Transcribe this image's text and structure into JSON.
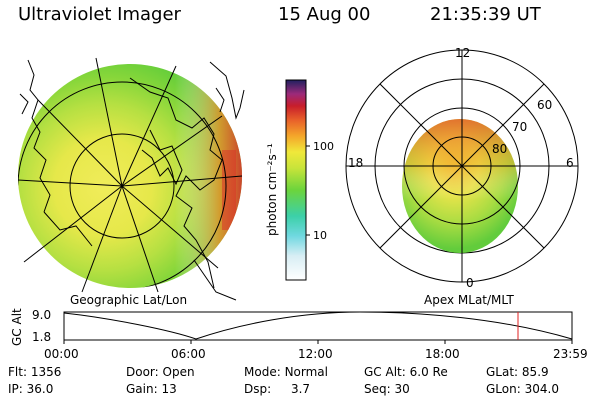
{
  "header": {
    "instrument": "Ultraviolet Imager",
    "date": "15 Aug 00",
    "time": "21:35:39 UT"
  },
  "colorbar": {
    "unit_label": "photon cm⁻²s⁻¹",
    "ticks": [
      "100",
      "10"
    ],
    "scale": "log"
  },
  "left_panel": {
    "caption": "Geographic Lat/Lon"
  },
  "right_panel": {
    "caption": "Apex MLat/MLT",
    "hour_labels": [
      "12",
      "18",
      "6",
      "0"
    ],
    "lat_labels": [
      "60",
      "70",
      "80"
    ]
  },
  "altitude_plot": {
    "ylabel": "GC Alt",
    "yticks": [
      "9.0",
      "1.8"
    ],
    "xticks": [
      "00:00",
      "06:00",
      "12:00",
      "18:00",
      "23:59"
    ],
    "marker_time": "21:35"
  },
  "info": {
    "rows": [
      [
        {
          "label": "Flt:",
          "value": "1356"
        },
        {
          "label": "Door:",
          "value": "Open"
        },
        {
          "label": "Mode:",
          "value": "Normal"
        },
        {
          "label": "GC Alt:",
          "value": "6.0 Re"
        },
        {
          "label": "GLat:",
          "value": "85.9"
        }
      ],
      [
        {
          "label": "IP:",
          "value": "36.0"
        },
        {
          "label": "Gain:",
          "value": "13"
        },
        {
          "label": "Dsp:",
          "value": "3.7"
        },
        {
          "label": "Seq:",
          "value": "30"
        },
        {
          "label": "GLon:",
          "value": "304.0"
        }
      ]
    ]
  },
  "colors": {
    "green": "#7ed13a",
    "yellow": "#e8e83a",
    "orange": "#f4a62a",
    "red": "#d8342a",
    "marker": "#e02020"
  }
}
